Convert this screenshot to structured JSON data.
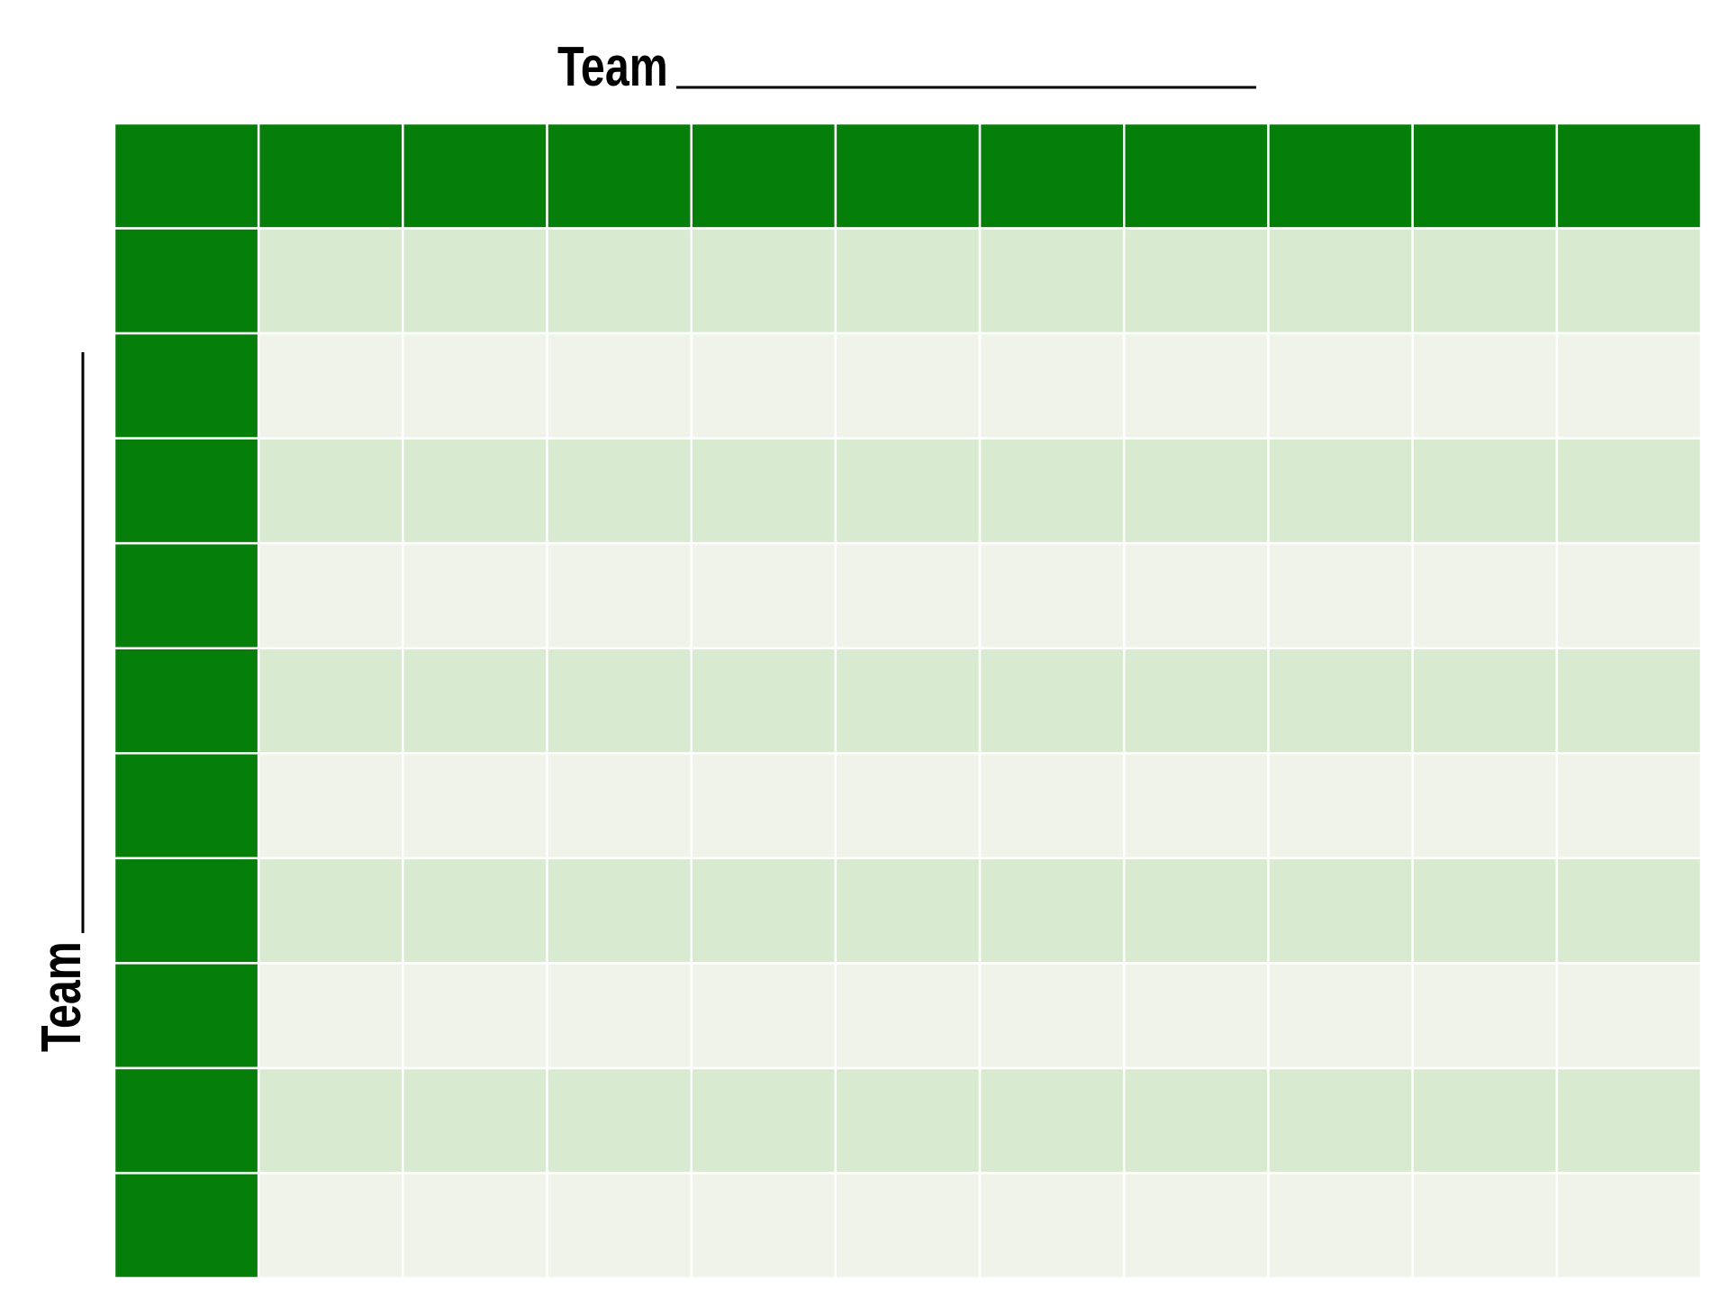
{
  "top_label": "Team",
  "side_label": "Team"
}
